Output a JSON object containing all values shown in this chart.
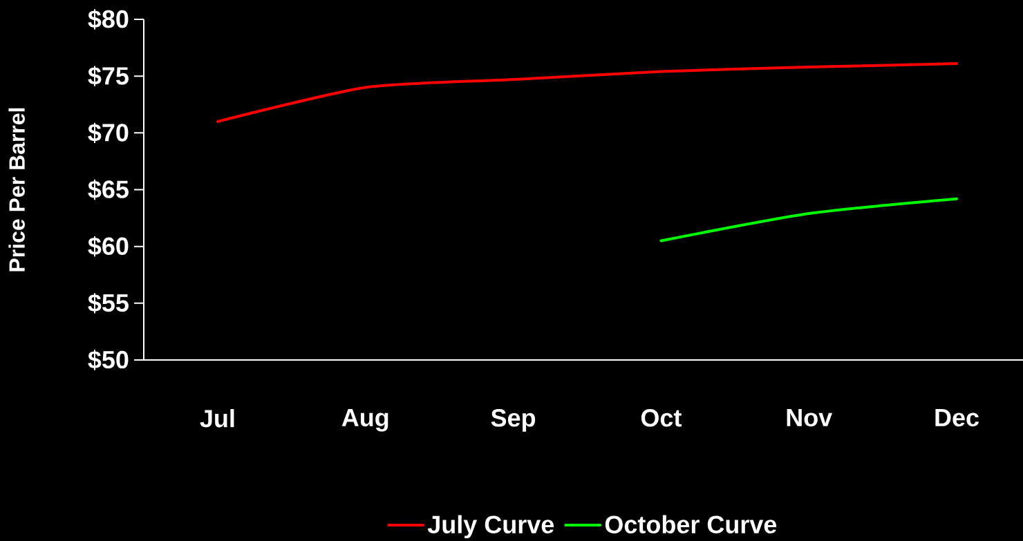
{
  "chart_data": {
    "type": "line",
    "ylabel": "Price Per Barrel",
    "categories": [
      "Jul",
      "Aug",
      "Sep",
      "Oct",
      "Nov",
      "Dec"
    ],
    "series": [
      {
        "name": "July Curve",
        "color": "#ff0000",
        "values": [
          71.0,
          74.0,
          74.7,
          75.4,
          75.8,
          76.1
        ]
      },
      {
        "name": "October Curve",
        "color": "#00ff00",
        "values": [
          null,
          null,
          null,
          60.5,
          62.9,
          64.2
        ]
      }
    ],
    "ylim": [
      50,
      80
    ],
    "yticks": [
      {
        "value": 50,
        "label": "$50"
      },
      {
        "value": 55,
        "label": "$55"
      },
      {
        "value": 60,
        "label": "$60"
      },
      {
        "value": 65,
        "label": "$65"
      },
      {
        "value": 70,
        "label": "$70"
      },
      {
        "value": 75,
        "label": "$75"
      },
      {
        "value": 80,
        "label": "$80"
      }
    ],
    "legend": "bottom"
  }
}
